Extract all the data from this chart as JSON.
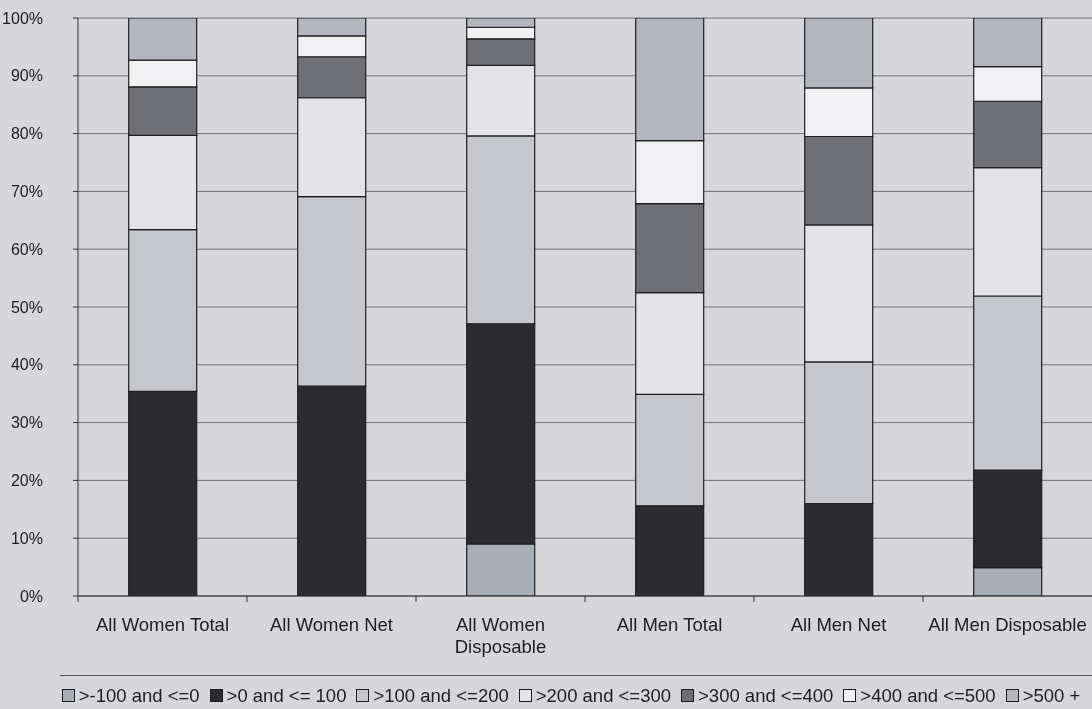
{
  "chart_data": {
    "type": "bar",
    "stacked": true,
    "categories": [
      "All Women Total",
      "All Women Net",
      "All Women Disposable",
      "All Men Total",
      "All Men Net",
      "All Men Disposable"
    ],
    "series": [
      {
        "name": ">-100 and <=0",
        "color": "#a9adb5",
        "values": [
          0,
          0,
          9.0,
          0,
          0,
          4.9
        ]
      },
      {
        "name": ">0 and <= 100",
        "color": "#2b2b30",
        "values": [
          35.4,
          36.3,
          38.1,
          15.6,
          16.0,
          16.9
        ]
      },
      {
        "name": ">100 and <=200",
        "color": "#c5c7cd",
        "values": [
          28.0,
          32.8,
          32.5,
          19.3,
          24.5,
          30.1
        ]
      },
      {
        "name": ">200 and <=300",
        "color": "#e4e4e8",
        "values": [
          16.3,
          17.1,
          12.2,
          17.6,
          23.7,
          22.2
        ]
      },
      {
        "name": ">300 and <=400",
        "color": "#6f7075",
        "values": [
          8.4,
          7.1,
          4.6,
          15.4,
          15.3,
          11.5
        ]
      },
      {
        "name": ">400 and <=500",
        "color": "#f1f1f4",
        "values": [
          4.6,
          3.6,
          2.0,
          10.9,
          8.4,
          6.0
        ]
      },
      {
        "name": ">500 +",
        "color": "#b3b6bd",
        "values": [
          7.3,
          3.1,
          1.6,
          21.2,
          12.1,
          8.4
        ]
      }
    ],
    "ylim": [
      0,
      100
    ],
    "yticks": [
      {
        "value": 0,
        "label": "0%"
      },
      {
        "value": 10,
        "label": "10%"
      },
      {
        "value": 20,
        "label": "20%"
      },
      {
        "value": 30,
        "label": "30%"
      },
      {
        "value": 40,
        "label": "40%"
      },
      {
        "value": 50,
        "label": "50%"
      },
      {
        "value": 60,
        "label": "60%"
      },
      {
        "value": 70,
        "label": "70%"
      },
      {
        "value": 80,
        "label": "80%"
      },
      {
        "value": 90,
        "label": "90%"
      },
      {
        "value": 100,
        "label": "100%"
      }
    ],
    "grid": "y",
    "legend": "bottom"
  }
}
